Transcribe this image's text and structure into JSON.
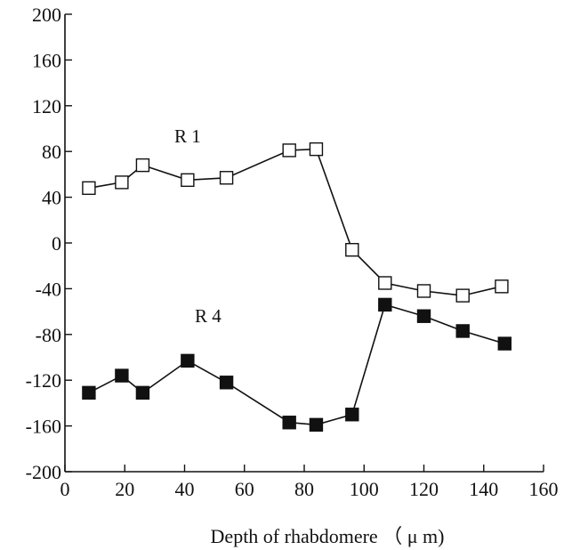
{
  "chart_data": {
    "type": "line",
    "title": "",
    "xlabel": "Depth of rhabdomere （ μ m)",
    "ylabel": "",
    "xlim": [
      0,
      160
    ],
    "ylim": [
      -200,
      200
    ],
    "x_ticks": [
      0,
      20,
      40,
      60,
      80,
      100,
      120,
      140,
      160
    ],
    "y_ticks": [
      200,
      160,
      120,
      80,
      40,
      0,
      -40,
      -80,
      -120,
      -160,
      -200
    ],
    "grid": false,
    "legend": "none",
    "series": [
      {
        "name": "R 1",
        "marker": "open-square",
        "x": [
          8,
          19,
          26,
          41,
          54,
          75,
          84,
          96,
          107,
          120,
          133,
          146
        ],
        "y": [
          48,
          53,
          68,
          55,
          57,
          81,
          82,
          -6,
          -35,
          -42,
          -46,
          -38
        ]
      },
      {
        "name": "R 4",
        "marker": "filled-square",
        "x": [
          8,
          19,
          26,
          41,
          54,
          75,
          84,
          96,
          107,
          120,
          133,
          147
        ],
        "y": [
          -131,
          -116,
          -131,
          -103,
          -122,
          -157,
          -159,
          -150,
          -54,
          -64,
          -77,
          -88
        ]
      }
    ]
  }
}
